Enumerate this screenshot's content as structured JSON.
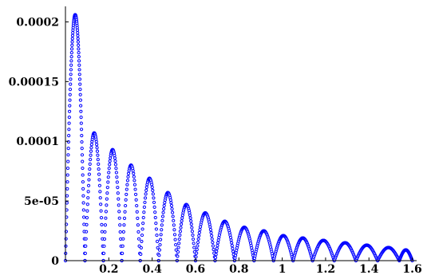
{
  "chart_data": {
    "type": "scatter",
    "title": "",
    "xlabel": "",
    "ylabel": "",
    "xlim": [
      0,
      1.62
    ],
    "ylim": [
      0,
      0.000213
    ],
    "grid": false,
    "legend": "none",
    "series_color": "#0000ff",
    "x_ticks": [
      {
        "value": 0.2,
        "label": "0.2"
      },
      {
        "value": 0.4,
        "label": "0.4"
      },
      {
        "value": 0.6,
        "label": "0.6"
      },
      {
        "value": 0.8,
        "label": "0.8"
      },
      {
        "value": 1.0,
        "label": "1"
      },
      {
        "value": 1.2,
        "label": "1.2"
      },
      {
        "value": 1.4,
        "label": "1.4"
      },
      {
        "value": 1.6,
        "label": "1.6"
      }
    ],
    "y_ticks": [
      {
        "value": 0,
        "label": "0"
      },
      {
        "value": 5e-05,
        "label": "5e-05"
      },
      {
        "value": 0.0001,
        "label": "0.0001"
      },
      {
        "value": 0.00015,
        "label": "0.00015"
      },
      {
        "value": 0.0002,
        "label": "0.0002"
      }
    ],
    "arches": [
      {
        "start": 0.0,
        "end": 0.09,
        "peak": 0.000206
      },
      {
        "start": 0.09,
        "end": 0.175,
        "peak": 0.000107
      },
      {
        "start": 0.175,
        "end": 0.26,
        "peak": 9.3e-05
      },
      {
        "start": 0.26,
        "end": 0.345,
        "peak": 8e-05
      },
      {
        "start": 0.345,
        "end": 0.43,
        "peak": 6.9e-05
      },
      {
        "start": 0.43,
        "end": 0.515,
        "peak": 5.7e-05
      },
      {
        "start": 0.515,
        "end": 0.6,
        "peak": 4.7e-05
      },
      {
        "start": 0.6,
        "end": 0.69,
        "peak": 4e-05
      },
      {
        "start": 0.69,
        "end": 0.78,
        "peak": 3.3e-05
      },
      {
        "start": 0.78,
        "end": 0.87,
        "peak": 2.8e-05
      },
      {
        "start": 0.87,
        "end": 0.96,
        "peak": 2.5e-05
      },
      {
        "start": 0.96,
        "end": 1.05,
        "peak": 2.1e-05
      },
      {
        "start": 1.05,
        "end": 1.14,
        "peak": 1.9e-05
      },
      {
        "start": 1.14,
        "end": 1.24,
        "peak": 1.7e-05
      },
      {
        "start": 1.24,
        "end": 1.34,
        "peak": 1.5e-05
      },
      {
        "start": 1.34,
        "end": 1.44,
        "peak": 1.3e-05
      },
      {
        "start": 1.44,
        "end": 1.54,
        "peak": 1.1e-05
      },
      {
        "start": 1.54,
        "end": 1.6,
        "peak": 9e-06
      }
    ]
  }
}
